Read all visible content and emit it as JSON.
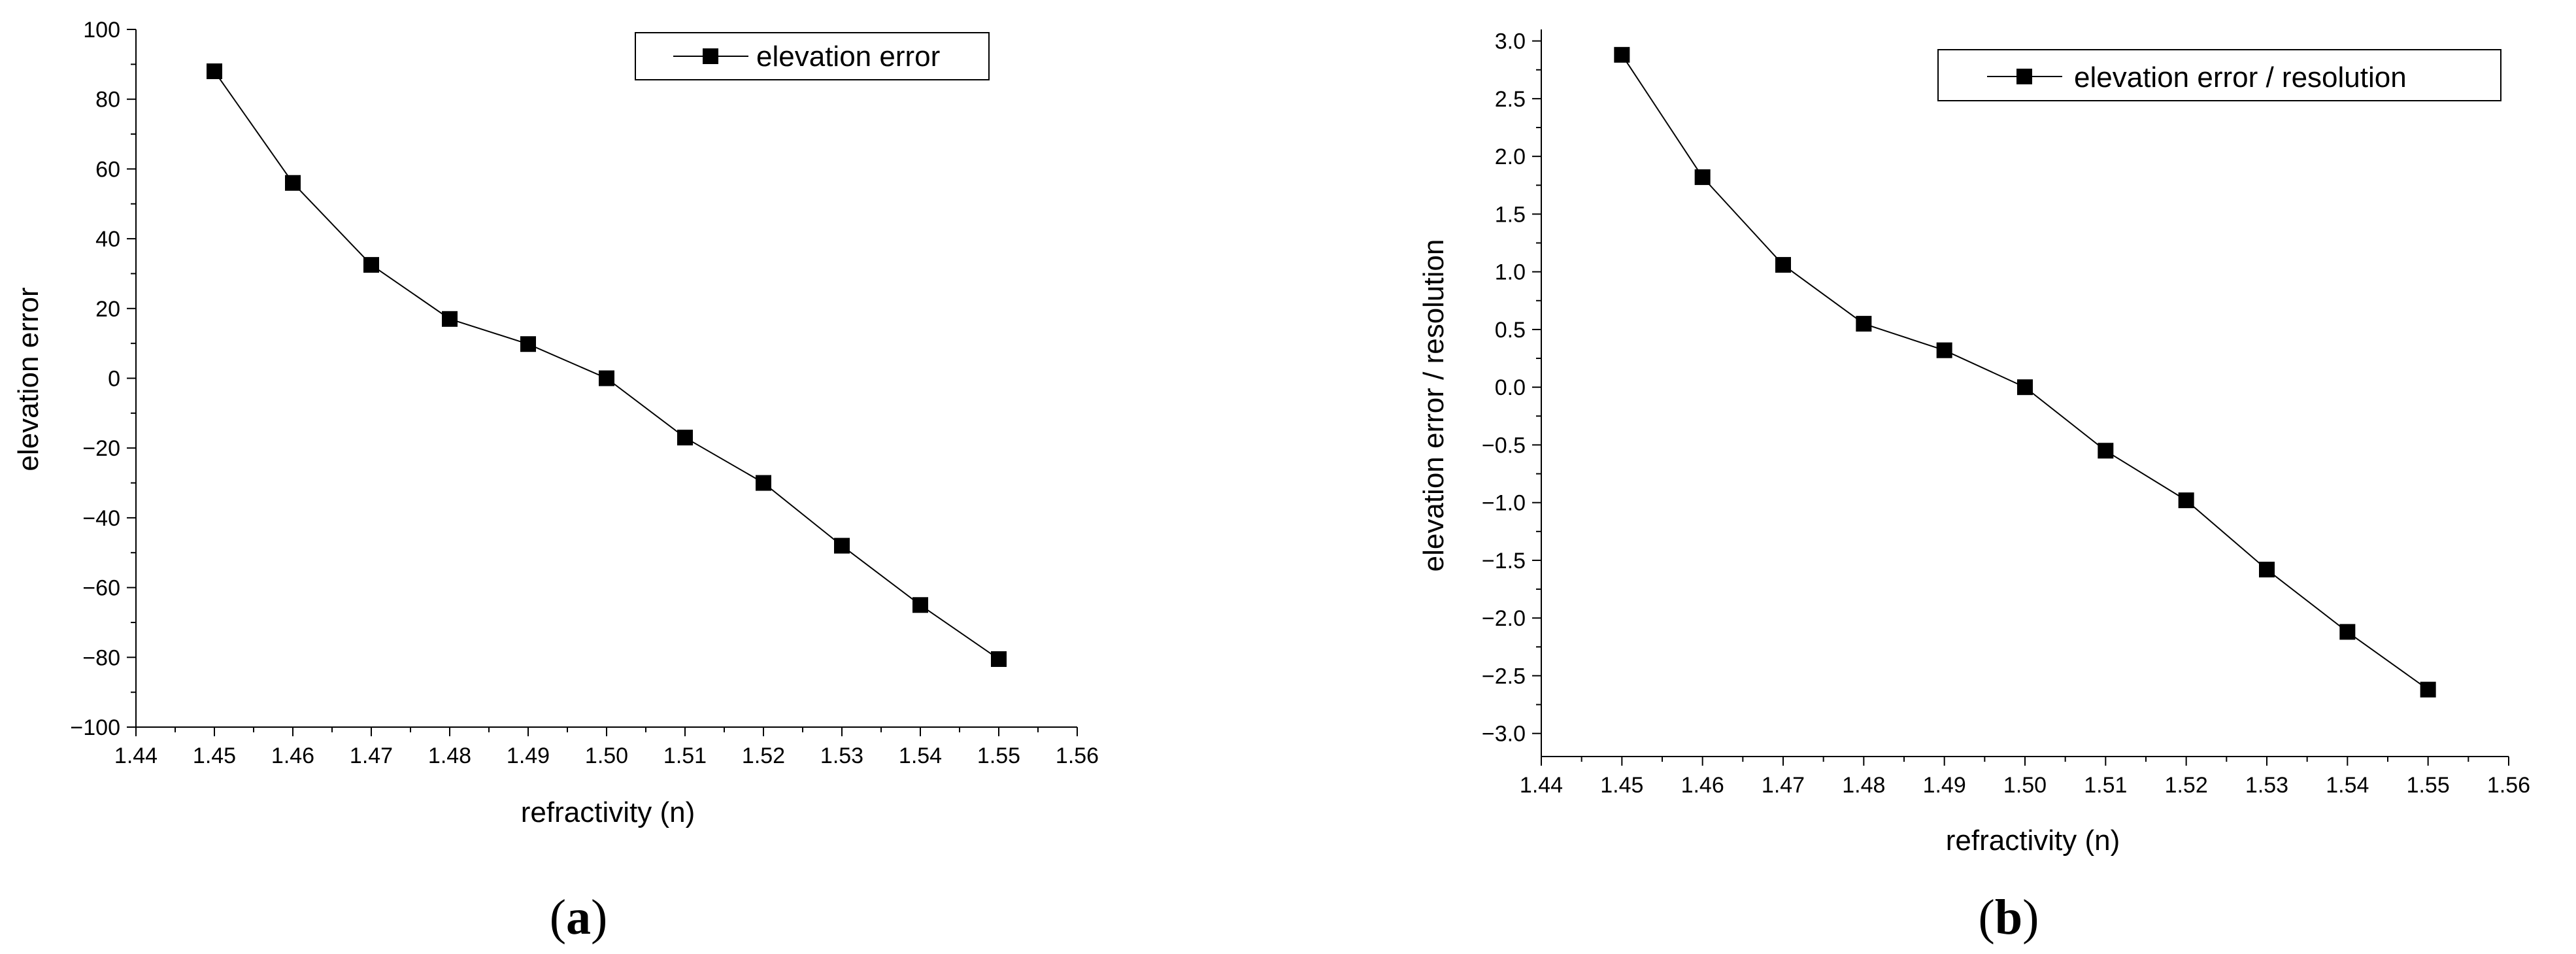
{
  "chart_data": [
    {
      "type": "line",
      "panel_label": {
        "open": "(",
        "letter": "a",
        "close": ")"
      },
      "xlabel": "refractivity (n)",
      "ylabel": "elevation error",
      "xlim": [
        1.44,
        1.56
      ],
      "ylim": [
        -100,
        100
      ],
      "x_ticks": [
        "1.44",
        "1.45",
        "1.46",
        "1.47",
        "1.48",
        "1.49",
        "1.50",
        "1.51",
        "1.52",
        "1.53",
        "1.54",
        "1.55",
        "1.56"
      ],
      "y_ticks": [
        "100",
        "80",
        "60",
        "40",
        "20",
        "0",
        "−20",
        "−40",
        "−60",
        "−80",
        "−100"
      ],
      "legend_position": "top-right",
      "grid": false,
      "series": [
        {
          "name": "elevation error",
          "marker": "square",
          "color": "#000000",
          "x": [
            1.45,
            1.46,
            1.47,
            1.48,
            1.49,
            1.5,
            1.51,
            1.52,
            1.53,
            1.54,
            1.55
          ],
          "y": [
            88,
            56,
            32.5,
            17,
            9.8,
            0,
            -17,
            -30,
            -48,
            -65,
            -80.5
          ]
        }
      ]
    },
    {
      "type": "line",
      "panel_label": {
        "open": "(",
        "letter": "b",
        "close": ")"
      },
      "xlabel": "refractivity (n)",
      "ylabel": "elevation error / resolution",
      "xlim": [
        1.44,
        1.56
      ],
      "ylim": [
        -3.2,
        3.1
      ],
      "x_ticks": [
        "1.44",
        "1.45",
        "1.46",
        "1.47",
        "1.48",
        "1.49",
        "1.50",
        "1.51",
        "1.52",
        "1.53",
        "1.54",
        "1.55",
        "1.56"
      ],
      "y_ticks": [
        "3.0",
        "2.5",
        "2.0",
        "1.5",
        "1.0",
        "0.5",
        "0.0",
        "−0.5",
        "−1.0",
        "−1.5",
        "−2.0",
        "−2.5",
        "−3.0"
      ],
      "legend_position": "top-right",
      "grid": false,
      "series": [
        {
          "name": "elevation error / resolution",
          "marker": "square",
          "color": "#000000",
          "x": [
            1.45,
            1.46,
            1.47,
            1.48,
            1.49,
            1.5,
            1.51,
            1.52,
            1.53,
            1.54,
            1.55
          ],
          "y": [
            2.88,
            1.82,
            1.06,
            0.55,
            0.32,
            0.0,
            -0.55,
            -0.98,
            -1.58,
            -2.12,
            -2.62
          ]
        }
      ]
    }
  ]
}
